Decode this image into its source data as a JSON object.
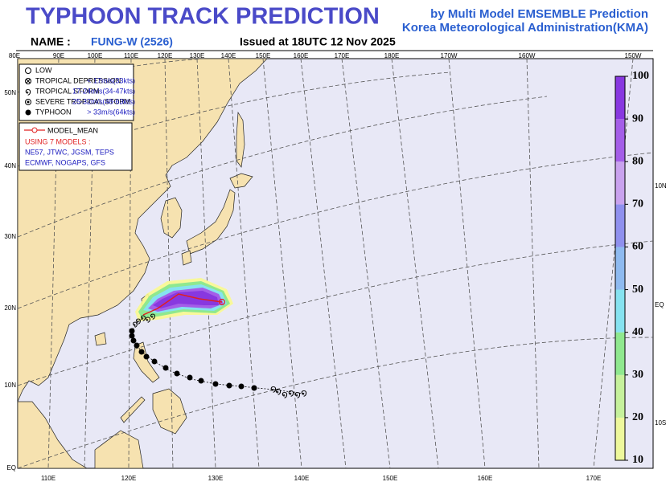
{
  "header": {
    "title": "TYPHOON TRACK PREDICTION",
    "subtitle": "by Multi Model EMSEMBLE Prediction",
    "agency": "Korea Meteorological Administration(KMA)",
    "name_label": "NAME :",
    "name": "FUNG-W (2526)",
    "issued": "Issued at  18UTC 12 Nov 2025"
  },
  "map": {
    "top_lon_labels": [
      "80E",
      "90E",
      "100E",
      "110E",
      "120E",
      "130E",
      "140E",
      "150E",
      "160E",
      "170E",
      "180E",
      "170W",
      "160W",
      "150W"
    ],
    "bottom_lon_labels": [
      "110E",
      "120E",
      "130E",
      "140E",
      "150E",
      "160E",
      "170E"
    ],
    "left_lat_labels": [
      "50N",
      "40N",
      "30N",
      "20N",
      "10N",
      "EQ"
    ],
    "right_lat_labels": [
      "10N",
      "EQ",
      "10S"
    ]
  },
  "legend": {
    "intensity": [
      {
        "label": "LOW"
      },
      {
        "label": "TROPICAL DEPRESSION",
        "speed": "< 17m/s(33kts)"
      },
      {
        "label": "TROPICAL STORM",
        "speed": "17-24m/s(34-47kts)"
      },
      {
        "label": "SEVERE TROPICAL STORM",
        "speed": "25-32m/s(48-63kts)"
      },
      {
        "label": "TYPHOON",
        "speed": "> 33m/s(64kts)"
      }
    ],
    "model_mean": "MODEL_MEAN",
    "models_title": "USING 7 MODELS :",
    "models_line1": "NE57, JTWC, JGSM, TEPS",
    "models_line2": "ECMWF, NOGAPS, GFS"
  },
  "colorbar": {
    "ticks": [
      10,
      20,
      30,
      40,
      50,
      60,
      70,
      80,
      90,
      100
    ],
    "colors": [
      "#eef89c",
      "#c6f19c",
      "#8fe88f",
      "#86e2f0",
      "#8ebaf0",
      "#8f90ee",
      "#c9a2ee",
      "#a45ee8",
      "#8838e0"
    ]
  }
}
